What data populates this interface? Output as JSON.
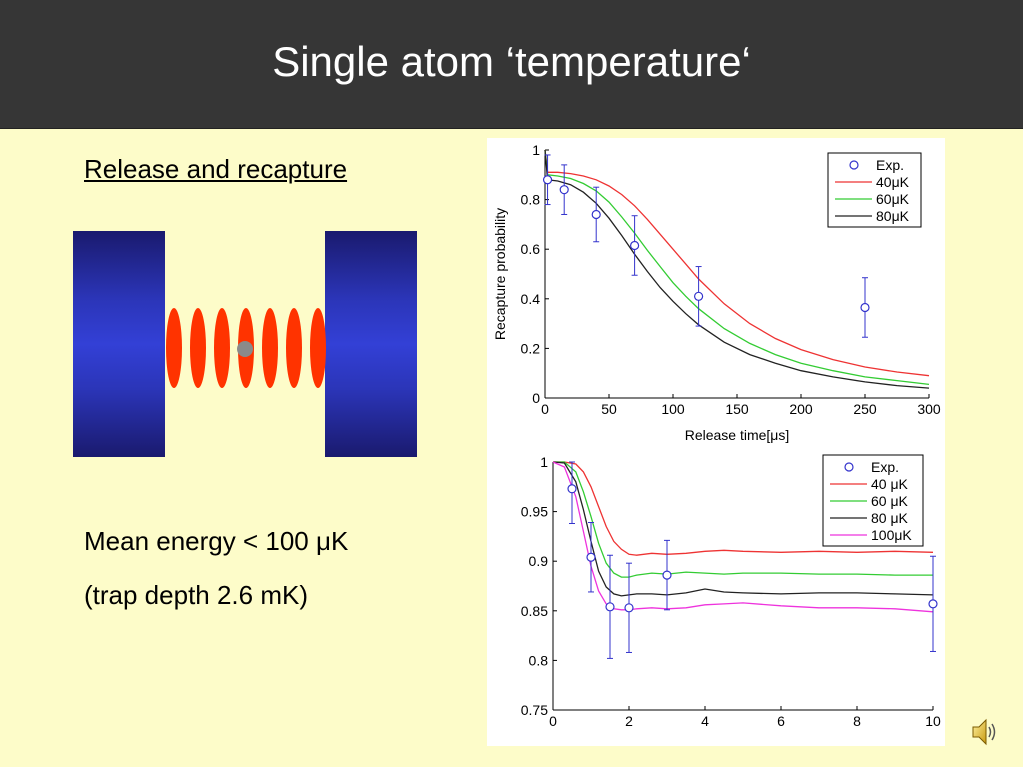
{
  "header": {
    "title": "Single atom ‘temperature‘"
  },
  "left": {
    "subtitle": "Release and recapture",
    "line1": "Mean energy < 100 μK",
    "line2": "(trap depth 2.6 mK)"
  },
  "icons": {
    "speaker": "speaker-icon"
  },
  "chart_data": [
    {
      "type": "line",
      "xlabel": "Release time[μs]",
      "ylabel": "Recapture probability",
      "xlim": [
        0,
        300
      ],
      "ylim": [
        0,
        1
      ],
      "xticks": [
        0,
        50,
        100,
        150,
        200,
        250,
        300
      ],
      "yticks": [
        0,
        0.2,
        0.4,
        0.6,
        0.8,
        1
      ],
      "ytick_labels": [
        "0",
        "0.2",
        "0.4",
        "0.6",
        "0.8",
        "1"
      ],
      "legend_position": "top-right",
      "experiment": {
        "name": "Exp.",
        "color": "#3333cc",
        "points": [
          {
            "x": 2,
            "y": 0.88,
            "err": 0.1
          },
          {
            "x": 15,
            "y": 0.84,
            "err": 0.1
          },
          {
            "x": 40,
            "y": 0.74,
            "err": 0.11
          },
          {
            "x": 70,
            "y": 0.615,
            "err": 0.12
          },
          {
            "x": 120,
            "y": 0.41,
            "err": 0.12
          },
          {
            "x": 250,
            "y": 0.365,
            "err": 0.12
          }
        ]
      },
      "series": [
        {
          "name": "40μK",
          "color": "#ee3333",
          "x": [
            0,
            2,
            10,
            20,
            30,
            40,
            50,
            60,
            70,
            80,
            90,
            100,
            110,
            120,
            140,
            160,
            180,
            200,
            225,
            250,
            275,
            300
          ],
          "y": [
            1.0,
            0.91,
            0.91,
            0.905,
            0.895,
            0.88,
            0.855,
            0.82,
            0.775,
            0.72,
            0.66,
            0.6,
            0.54,
            0.48,
            0.38,
            0.3,
            0.24,
            0.195,
            0.155,
            0.125,
            0.105,
            0.09
          ]
        },
        {
          "name": "60μK",
          "color": "#33cc33",
          "x": [
            0,
            2,
            10,
            20,
            30,
            40,
            50,
            60,
            70,
            80,
            90,
            100,
            110,
            120,
            140,
            160,
            180,
            200,
            225,
            250,
            275,
            300
          ],
          "y": [
            1.0,
            0.9,
            0.895,
            0.885,
            0.865,
            0.835,
            0.79,
            0.73,
            0.665,
            0.595,
            0.53,
            0.465,
            0.41,
            0.36,
            0.28,
            0.22,
            0.175,
            0.14,
            0.11,
            0.085,
            0.07,
            0.055
          ]
        },
        {
          "name": "80μK",
          "color": "#222222",
          "x": [
            0,
            2,
            10,
            20,
            30,
            40,
            50,
            60,
            70,
            80,
            90,
            100,
            110,
            120,
            140,
            160,
            180,
            200,
            225,
            250,
            275,
            300
          ],
          "y": [
            1.0,
            0.88,
            0.875,
            0.86,
            0.83,
            0.785,
            0.725,
            0.655,
            0.58,
            0.51,
            0.445,
            0.39,
            0.34,
            0.295,
            0.225,
            0.175,
            0.14,
            0.11,
            0.085,
            0.065,
            0.05,
            0.04
          ]
        }
      ]
    },
    {
      "type": "line",
      "xlabel": "",
      "ylabel": "",
      "xlim": [
        0,
        10
      ],
      "ylim": [
        0.75,
        1
      ],
      "xticks": [
        0,
        2,
        4,
        6,
        8,
        10
      ],
      "yticks": [
        0.75,
        0.8,
        0.85,
        0.9,
        0.95,
        1
      ],
      "ytick_labels": [
        "0.75",
        "0.8",
        "0.85",
        "0.9",
        "0.95",
        "1"
      ],
      "legend_position": "top-right",
      "experiment": {
        "name": "Exp.",
        "color": "#3333cc",
        "points": [
          {
            "x": 0.5,
            "y": 0.973,
            "err": 0.035
          },
          {
            "x": 1.0,
            "y": 0.904,
            "err": 0.035
          },
          {
            "x": 1.5,
            "y": 0.854,
            "err": 0.052
          },
          {
            "x": 2.0,
            "y": 0.853,
            "err": 0.045
          },
          {
            "x": 3.0,
            "y": 0.886,
            "err": 0.035
          },
          {
            "x": 10.0,
            "y": 0.857,
            "err": 0.048
          }
        ]
      },
      "series": [
        {
          "name": "40 μK",
          "color": "#ee3333",
          "x": [
            0,
            0.3,
            0.6,
            0.8,
            1.0,
            1.2,
            1.4,
            1.6,
            1.8,
            2.0,
            2.2,
            2.6,
            3.0,
            3.5,
            4.0,
            4.5,
            5.0,
            6.0,
            7.0,
            8.0,
            9.0,
            10.0
          ],
          "y": [
            1.0,
            1.0,
            0.998,
            0.99,
            0.975,
            0.955,
            0.935,
            0.92,
            0.912,
            0.907,
            0.906,
            0.908,
            0.907,
            0.908,
            0.91,
            0.911,
            0.91,
            0.909,
            0.91,
            0.909,
            0.91,
            0.909
          ]
        },
        {
          "name": "60 μK",
          "color": "#33cc33",
          "x": [
            0,
            0.3,
            0.6,
            0.8,
            1.0,
            1.2,
            1.4,
            1.6,
            1.8,
            2.0,
            2.2,
            2.6,
            3.0,
            3.5,
            4.0,
            4.5,
            5.0,
            6.0,
            7.0,
            8.0,
            9.0,
            10.0
          ],
          "y": [
            1.0,
            1.0,
            0.99,
            0.97,
            0.945,
            0.918,
            0.898,
            0.888,
            0.884,
            0.884,
            0.886,
            0.888,
            0.887,
            0.889,
            0.888,
            0.887,
            0.888,
            0.888,
            0.887,
            0.887,
            0.886,
            0.886
          ]
        },
        {
          "name": "80 μK",
          "color": "#222222",
          "x": [
            0,
            0.3,
            0.6,
            0.8,
            1.0,
            1.2,
            1.4,
            1.6,
            1.8,
            2.0,
            2.2,
            2.6,
            3.0,
            3.5,
            4.0,
            4.5,
            5.0,
            6.0,
            7.0,
            8.0,
            9.0,
            10.0
          ],
          "y": [
            1.0,
            0.999,
            0.98,
            0.952,
            0.92,
            0.89,
            0.874,
            0.867,
            0.865,
            0.866,
            0.867,
            0.867,
            0.866,
            0.868,
            0.872,
            0.869,
            0.868,
            0.867,
            0.868,
            0.868,
            0.867,
            0.866
          ]
        },
        {
          "name": "100μK",
          "color": "#ee33dd",
          "x": [
            0,
            0.3,
            0.6,
            0.8,
            1.0,
            1.2,
            1.4,
            1.6,
            1.8,
            2.0,
            2.2,
            2.6,
            3.0,
            3.5,
            4.0,
            4.5,
            5.0,
            6.0,
            7.0,
            8.0,
            9.0,
            10.0
          ],
          "y": [
            1.0,
            0.995,
            0.965,
            0.93,
            0.895,
            0.87,
            0.857,
            0.852,
            0.851,
            0.851,
            0.852,
            0.853,
            0.852,
            0.853,
            0.856,
            0.857,
            0.858,
            0.855,
            0.853,
            0.853,
            0.852,
            0.849
          ]
        }
      ]
    }
  ]
}
